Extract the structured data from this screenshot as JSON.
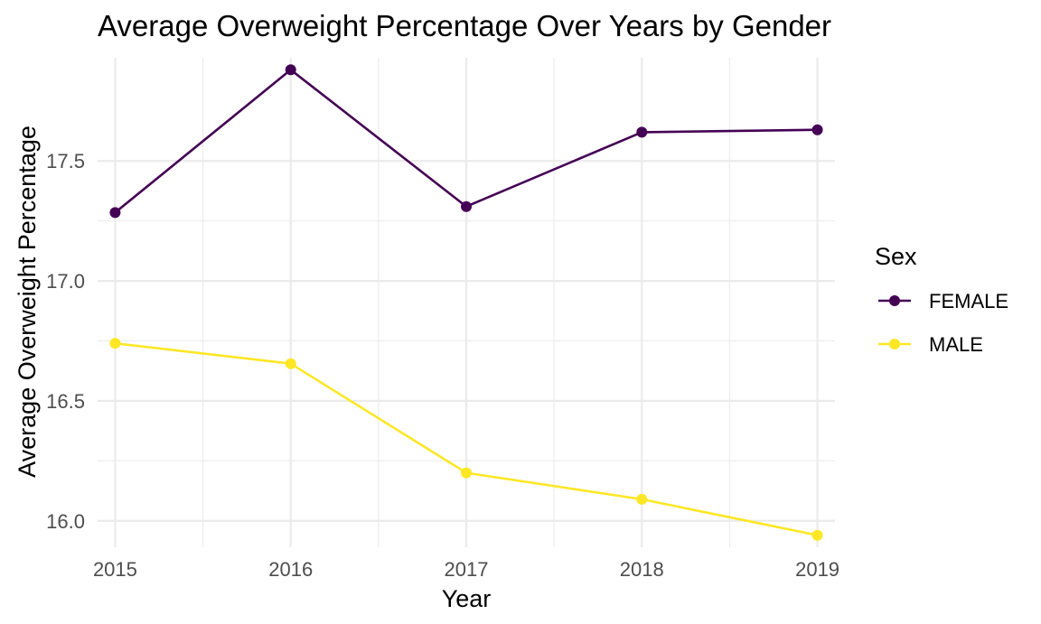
{
  "chart_data": {
    "type": "line",
    "title": "Average Overweight Percentage Over Years by Gender",
    "xlabel": "Year",
    "ylabel": "Average Overweight Percentage",
    "x": [
      2015,
      2016,
      2017,
      2018,
      2019
    ],
    "x_tick_labels": [
      "2015",
      "2016",
      "2017",
      "2018",
      "2019"
    ],
    "y_ticks": [
      16.0,
      16.5,
      17.0,
      17.5
    ],
    "y_tick_labels": [
      "16.0",
      "16.5",
      "17.0",
      "17.5"
    ],
    "xlim": [
      2014.9,
      2019.1
    ],
    "ylim": [
      15.89,
      17.93
    ],
    "grid": true,
    "legend": {
      "title": "Sex",
      "position": "right"
    },
    "series": [
      {
        "name": "FEMALE",
        "color": "#440154",
        "values": [
          17.285,
          17.88,
          17.31,
          17.62,
          17.63
        ]
      },
      {
        "name": "MALE",
        "color": "#FDE725",
        "values": [
          16.74,
          16.655,
          16.2,
          16.09,
          15.94
        ]
      }
    ]
  }
}
